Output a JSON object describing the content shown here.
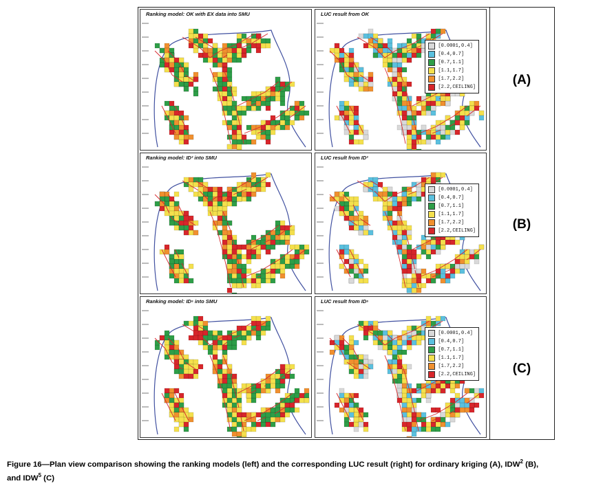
{
  "rows": [
    {
      "label": "(A)",
      "left_title": "Ranking model: OK with EX data into SMU",
      "right_title": "LUC result from OK"
    },
    {
      "label": "(B)",
      "left_title": "Ranking model: ID² into SMU",
      "right_title": "LUC result from ID²"
    },
    {
      "label": "(C)",
      "left_title": "Ranking model: ID⁵ into SMU",
      "right_title": "LUC result from ID⁵"
    }
  ],
  "legend": [
    {
      "label": "[0.0001,0.4]",
      "color": "#d9d9d9"
    },
    {
      "label": "[0.4,0.7]",
      "color": "#5bc0de"
    },
    {
      "label": "[0.7,1.1]",
      "color": "#2e9e48"
    },
    {
      "label": "[1.1,1.7]",
      "color": "#f4e04d"
    },
    {
      "label": "[1.7,2.2]",
      "color": "#f0902f"
    },
    {
      "label": "[2.2,CEILING]",
      "color": "#d7262b"
    }
  ],
  "caption": {
    "prefix": "Figure 16—Plan view comparison showing the ranking models (left) and the corresponding LUC result (right) for ordinary kriging (A), IDW",
    "sup1": "2",
    "mid": " (B),",
    "line2": "and IDW",
    "sup2": "5",
    "suffix": " (C)"
  }
}
